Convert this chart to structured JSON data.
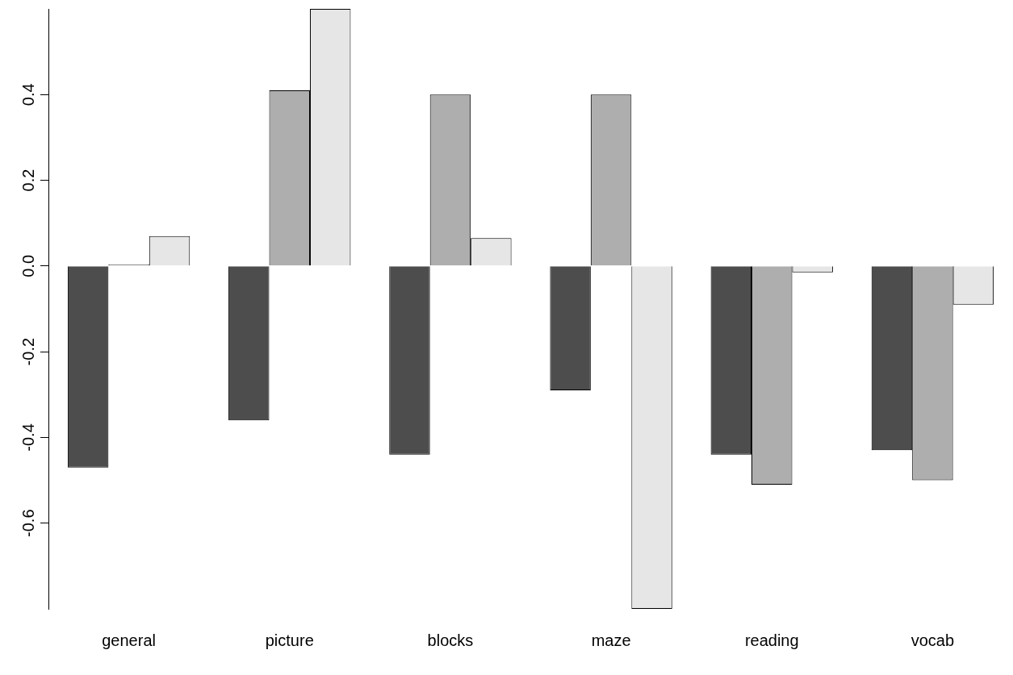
{
  "chart_data": {
    "type": "bar",
    "categories": [
      "general",
      "picture",
      "blocks",
      "maze",
      "reading",
      "vocab"
    ],
    "series": [
      {
        "color": "#4d4d4d",
        "values": [
          -0.47,
          -0.36,
          -0.44,
          -0.29,
          -0.44,
          -0.43
        ]
      },
      {
        "color": "#aeaeae",
        "values": [
          0.004,
          0.41,
          0.4,
          0.4,
          -0.51,
          -0.5
        ]
      },
      {
        "color": "#e6e6e6",
        "values": [
          0.07,
          0.6,
          0.065,
          -0.8,
          -0.015,
          -0.09
        ]
      }
    ],
    "ylim": [
      -0.8,
      0.6
    ],
    "yticks": [
      -0.6,
      -0.4,
      -0.2,
      {
        "value": 0,
        "label": "0.0"
      },
      0.2,
      0.4
    ]
  }
}
